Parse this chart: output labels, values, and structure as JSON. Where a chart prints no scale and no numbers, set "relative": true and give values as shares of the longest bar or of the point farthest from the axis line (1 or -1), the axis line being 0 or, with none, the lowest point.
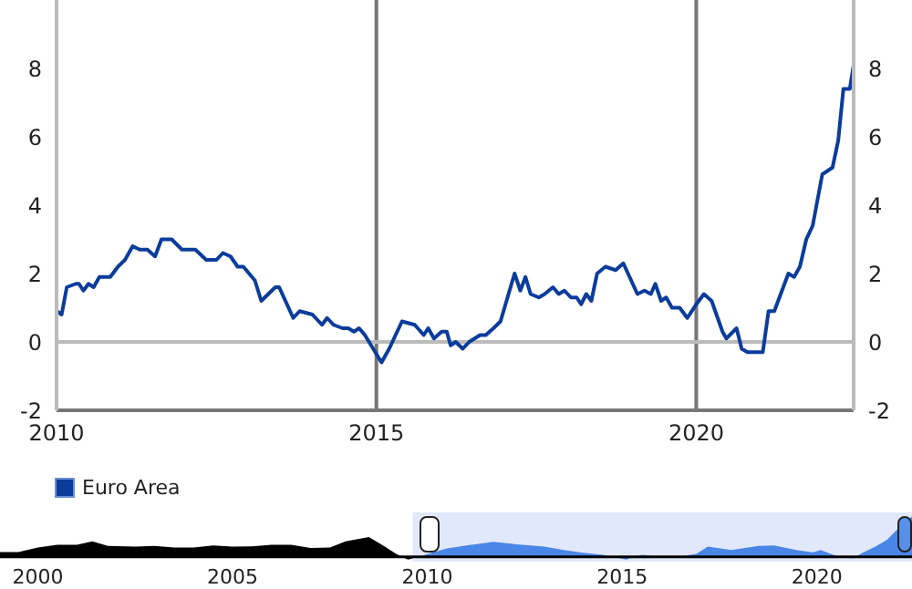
{
  "chart_data": [
    {
      "type": "line",
      "x": [
        2010.0,
        2010.08,
        2010.16,
        2010.3,
        2010.35,
        2010.42,
        2010.5,
        2010.58,
        2010.67,
        2010.84,
        2010.96,
        2011.07,
        2011.19,
        2011.3,
        2011.42,
        2011.54,
        2011.64,
        2011.8,
        2011.96,
        2012.17,
        2012.34,
        2012.5,
        2012.6,
        2012.72,
        2012.83,
        2012.92,
        2013.1,
        2013.2,
        2013.42,
        2013.48,
        2013.7,
        2013.8,
        2014.0,
        2014.15,
        2014.23,
        2014.33,
        2014.47,
        2014.56,
        2014.65,
        2014.73,
        2014.82,
        2015.08,
        2015.2,
        2015.4,
        2015.6,
        2015.74,
        2015.81,
        2015.9,
        2016.02,
        2016.1,
        2016.16,
        2016.24,
        2016.35,
        2016.45,
        2016.62,
        2016.71,
        2016.83,
        2016.94,
        2017.16,
        2017.25,
        2017.33,
        2017.41,
        2017.54,
        2017.63,
        2017.76,
        2017.85,
        2017.94,
        2018.04,
        2018.13,
        2018.2,
        2018.28,
        2018.36,
        2018.45,
        2018.58,
        2018.74,
        2018.86,
        2019.08,
        2019.19,
        2019.29,
        2019.36,
        2019.45,
        2019.53,
        2019.62,
        2019.74,
        2019.86,
        2020.0,
        2020.12,
        2020.24,
        2020.41,
        2020.47,
        2020.63,
        2020.71,
        2020.8,
        2021.04,
        2021.13,
        2021.22,
        2021.44,
        2021.53,
        2021.62,
        2021.72,
        2021.82,
        2021.97,
        2022.13,
        2022.22,
        2022.3,
        2022.4,
        2022.46
      ],
      "series": [
        {
          "name": "Euro Area",
          "color": "#0b3c9c",
          "values": [
            0.9,
            0.8,
            1.6,
            1.7,
            1.7,
            1.5,
            1.7,
            1.6,
            1.9,
            1.9,
            2.2,
            2.4,
            2.8,
            2.7,
            2.7,
            2.5,
            3.0,
            3.0,
            2.7,
            2.7,
            2.4,
            2.4,
            2.6,
            2.5,
            2.2,
            2.2,
            1.8,
            1.2,
            1.6,
            1.6,
            0.7,
            0.9,
            0.8,
            0.5,
            0.7,
            0.5,
            0.4,
            0.4,
            0.3,
            0.4,
            0.2,
            -0.6,
            -0.2,
            0.6,
            0.5,
            0.2,
            0.4,
            0.1,
            0.3,
            0.3,
            -0.1,
            0.0,
            -0.2,
            0.0,
            0.2,
            0.2,
            0.4,
            0.6,
            2.0,
            1.5,
            1.9,
            1.4,
            1.3,
            1.4,
            1.6,
            1.4,
            1.5,
            1.3,
            1.3,
            1.1,
            1.4,
            1.2,
            2.0,
            2.2,
            2.1,
            2.3,
            1.4,
            1.5,
            1.4,
            1.7,
            1.2,
            1.3,
            1.0,
            1.0,
            0.7,
            1.1,
            1.4,
            1.2,
            0.3,
            0.1,
            0.4,
            -0.2,
            -0.3,
            -0.3,
            0.9,
            0.9,
            2.0,
            1.9,
            2.2,
            3.0,
            3.4,
            4.9,
            5.1,
            5.9,
            7.4,
            7.4,
            8.1
          ]
        }
      ],
      "xlim": [
        2010,
        2022.46
      ],
      "xticks": [
        2010,
        2015,
        2020
      ],
      "ylim": [
        -2,
        10
      ],
      "yticks": [
        -2,
        0,
        2,
        4,
        6,
        8
      ],
      "y2lim": [
        -2,
        10
      ],
      "y2ticks": [
        -2,
        0,
        2,
        4,
        6,
        8
      ],
      "grid": "x",
      "legend": "bottom",
      "ref_lines": [
        {
          "axis": "y",
          "value": 0,
          "color": "#bbbbbb"
        }
      ]
    },
    {
      "type": "area",
      "relative": true,
      "series": [
        {
          "color": "#000000",
          "x": [
            1999.03,
            1999.5,
            2000.0,
            2000.5,
            2001.0,
            2001.4,
            2001.8,
            2002.5,
            2003.0,
            2003.5,
            2004.0,
            2004.5,
            2005.0,
            2005.5,
            2006.0,
            2006.5,
            2007.0,
            2007.5,
            2007.9,
            2008.5,
            2008.9,
            2009.2,
            2009.5,
            2009.62
          ],
          "values": [
            0.12,
            0.12,
            0.23,
            0.3,
            0.3,
            0.38,
            0.27,
            0.25,
            0.27,
            0.23,
            0.23,
            0.28,
            0.25,
            0.26,
            0.3,
            0.3,
            0.22,
            0.23,
            0.38,
            0.49,
            0.26,
            0.07,
            -0.07,
            -0.04
          ]
        },
        {
          "color": "#4a86e8",
          "x": [
            2009.62,
            2010.5,
            2011.0,
            2011.7,
            2012.3,
            2013.0,
            2013.5,
            2014.0,
            2014.5,
            2015.1,
            2015.5,
            2016.3,
            2016.9,
            2017.2,
            2017.8,
            2018.5,
            2018.9,
            2019.5,
            2019.9,
            2020.1,
            2020.5,
            2020.9,
            2021.2,
            2021.5,
            2021.8,
            2022.0,
            2022.44
          ],
          "values": [
            -0.04,
            0.21,
            0.28,
            0.37,
            0.31,
            0.25,
            0.17,
            0.1,
            0.05,
            -0.07,
            0.05,
            -0.02,
            0.07,
            0.25,
            0.17,
            0.27,
            0.28,
            0.16,
            0.11,
            0.17,
            0.02,
            -0.04,
            0.11,
            0.25,
            0.42,
            0.62,
            1
          ]
        }
      ],
      "xlim": [
        1999.03,
        2022.44
      ],
      "xticks": [
        2000,
        2005,
        2010,
        2015,
        2020
      ],
      "tick_labels": "x",
      "bands": [
        {
          "axis": "x",
          "from": 2009.62,
          "to": 2022.44,
          "color": "#e2e8fb"
        }
      ]
    }
  ]
}
